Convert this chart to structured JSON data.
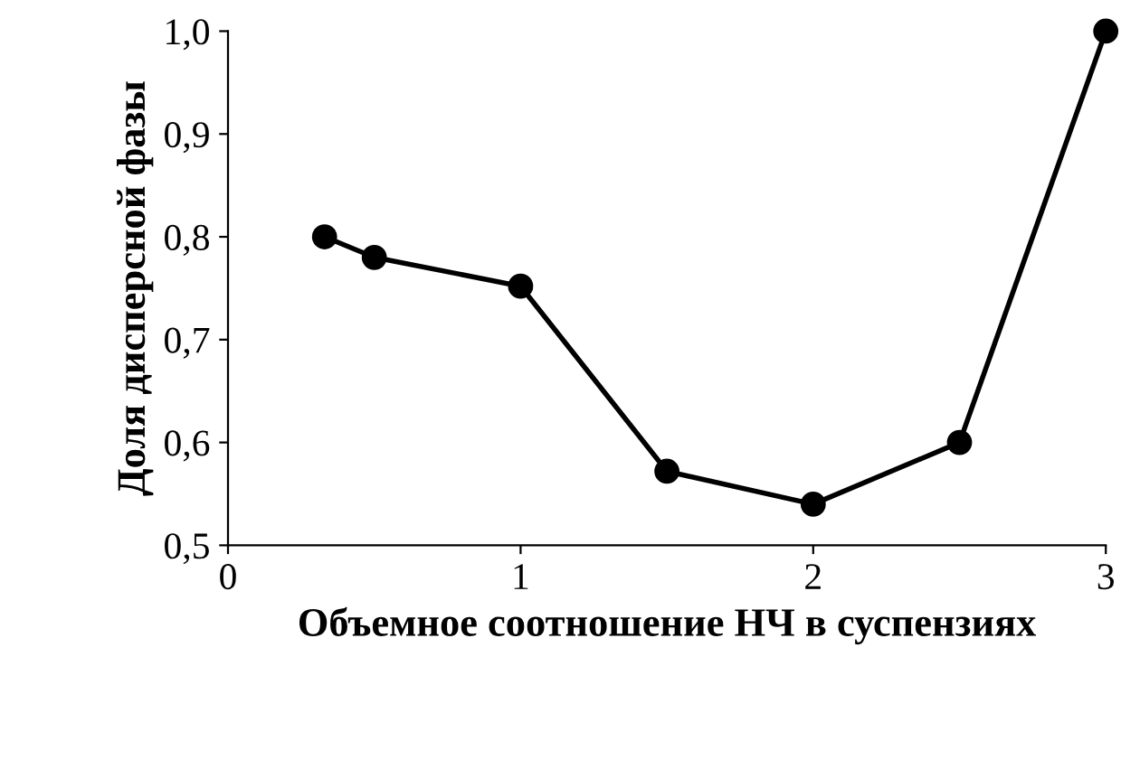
{
  "chart_data": {
    "type": "line",
    "xlabel": "Объемное соотношение НЧ в суспензиях",
    "ylabel": "Доля дисперсной фазы",
    "x": [
      0.33,
      0.5,
      1,
      1.5,
      2,
      2.5,
      3
    ],
    "series": [
      {
        "color": "#000000",
        "values": [
          0.8,
          0.78,
          0.752,
          0.572,
          0.54,
          0.6,
          1.0
        ]
      }
    ],
    "marker": "circle",
    "line_style": "solid",
    "grid": false,
    "legend": false,
    "xlim": [
      0,
      3
    ],
    "xticks": [
      0,
      1,
      2,
      3
    ],
    "ylim": [
      0.5,
      1.0
    ],
    "yticks": [
      {
        "value": 0.5,
        "label": "0,5"
      },
      {
        "value": 0.6,
        "label": "0,6"
      },
      {
        "value": 0.7,
        "label": "0,7"
      },
      {
        "value": 0.8,
        "label": "0,8"
      },
      {
        "value": 0.9,
        "label": "0,9"
      },
      {
        "value": 1.0,
        "label": "1,0"
      }
    ]
  }
}
